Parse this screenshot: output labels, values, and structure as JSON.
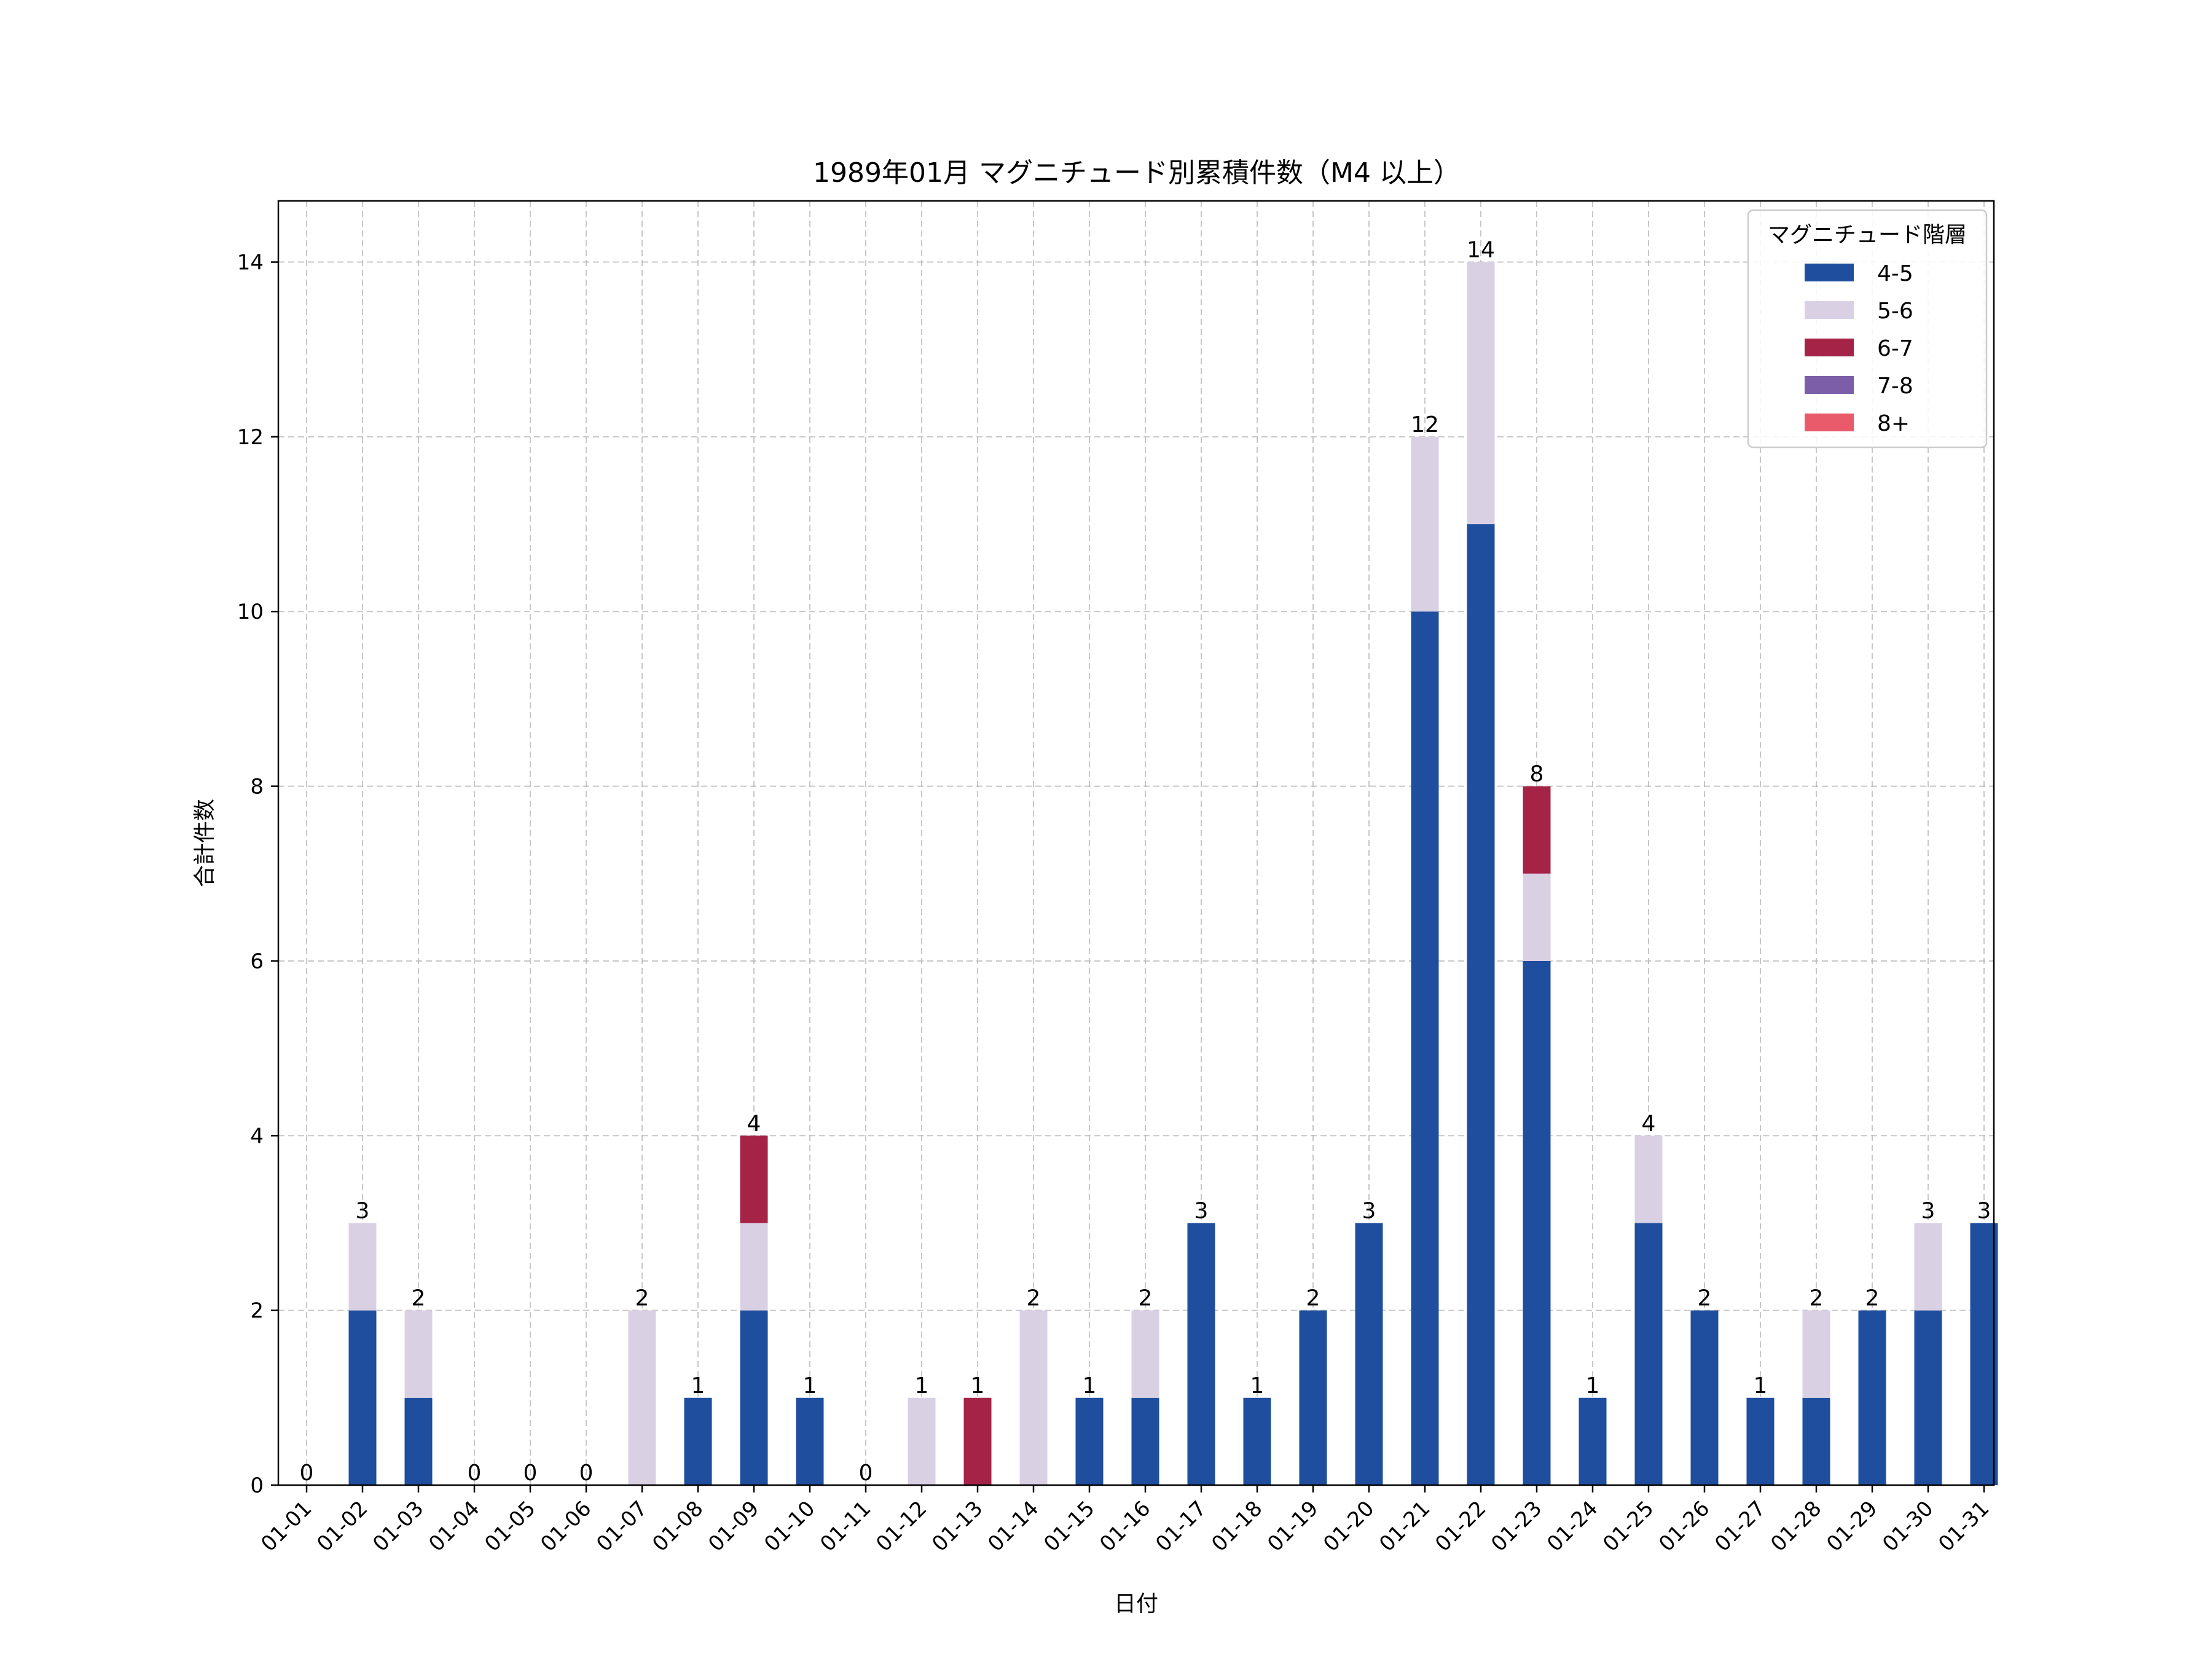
{
  "chart_data": {
    "type": "bar",
    "stacked": true,
    "title": "1989年01月 マグニチュード別累積件数（M4 以上）",
    "xlabel": "日付",
    "ylabel": "合計件数",
    "ylim": [
      0,
      14.7
    ],
    "yticks": [
      0,
      2,
      4,
      6,
      8,
      10,
      12,
      14
    ],
    "grid": true,
    "legend_position": "top-right",
    "legend_title": "マグニチュード階層",
    "categories": [
      "01-01",
      "01-02",
      "01-03",
      "01-04",
      "01-05",
      "01-06",
      "01-07",
      "01-08",
      "01-09",
      "01-10",
      "01-11",
      "01-12",
      "01-13",
      "01-14",
      "01-15",
      "01-16",
      "01-17",
      "01-18",
      "01-19",
      "01-20",
      "01-21",
      "01-22",
      "01-23",
      "01-24",
      "01-25",
      "01-26",
      "01-27",
      "01-28",
      "01-29",
      "01-30",
      "01-31"
    ],
    "series": [
      {
        "name": "4-5",
        "color": "#1f4e9e",
        "values": [
          0,
          2,
          1,
          0,
          0,
          0,
          0,
          1,
          2,
          1,
          0,
          0,
          0,
          0,
          1,
          1,
          3,
          1,
          2,
          3,
          10,
          11,
          6,
          1,
          3,
          2,
          1,
          1,
          2,
          2,
          3
        ]
      },
      {
        "name": "5-6",
        "color": "#dad0e4",
        "values": [
          0,
          1,
          1,
          0,
          0,
          0,
          2,
          0,
          1,
          0,
          0,
          1,
          0,
          2,
          0,
          1,
          0,
          0,
          0,
          0,
          2,
          3,
          1,
          0,
          1,
          0,
          0,
          1,
          0,
          1,
          0
        ]
      },
      {
        "name": "6-7",
        "color": "#a52347",
        "values": [
          0,
          0,
          0,
          0,
          0,
          0,
          0,
          0,
          1,
          0,
          0,
          0,
          1,
          0,
          0,
          0,
          0,
          0,
          0,
          0,
          0,
          0,
          1,
          0,
          0,
          0,
          0,
          0,
          0,
          0,
          0
        ]
      },
      {
        "name": "7-8",
        "color": "#7b5ea7",
        "values": [
          0,
          0,
          0,
          0,
          0,
          0,
          0,
          0,
          0,
          0,
          0,
          0,
          0,
          0,
          0,
          0,
          0,
          0,
          0,
          0,
          0,
          0,
          0,
          0,
          0,
          0,
          0,
          0,
          0,
          0,
          0
        ]
      },
      {
        "name": "8+",
        "color": "#e95a6a",
        "values": [
          0,
          0,
          0,
          0,
          0,
          0,
          0,
          0,
          0,
          0,
          0,
          0,
          0,
          0,
          0,
          0,
          0,
          0,
          0,
          0,
          0,
          0,
          0,
          0,
          0,
          0,
          0,
          0,
          0,
          0,
          0
        ]
      }
    ],
    "totals": [
      0,
      3,
      2,
      0,
      0,
      0,
      2,
      1,
      4,
      1,
      0,
      1,
      1,
      2,
      1,
      2,
      3,
      1,
      2,
      3,
      12,
      14,
      8,
      1,
      4,
      2,
      1,
      2,
      2,
      3,
      3
    ]
  }
}
